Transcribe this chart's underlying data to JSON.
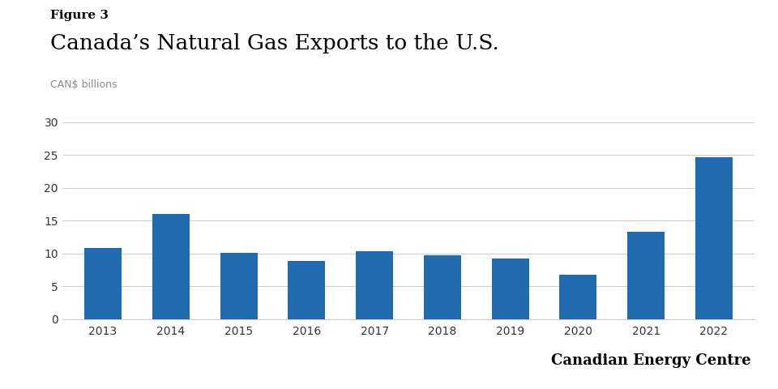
{
  "figure_label": "Figure 3",
  "title": "Canada’s Natural Gas Exports to the U.S.",
  "ylabel": "CAN$ billions",
  "categories": [
    "2013",
    "2014",
    "2015",
    "2016",
    "2017",
    "2018",
    "2019",
    "2020",
    "2021",
    "2022"
  ],
  "values": [
    10.8,
    16.0,
    10.1,
    8.8,
    10.3,
    9.7,
    9.2,
    6.8,
    13.3,
    24.7
  ],
  "bar_color": "#1f6bad",
  "background_color": "#ffffff",
  "ylim": [
    0,
    32
  ],
  "yticks": [
    0,
    5,
    10,
    15,
    20,
    25,
    30
  ],
  "grid_color": "#cccccc",
  "watermark": "Canadian Energy Centre",
  "figure_label_fontsize": 11,
  "title_fontsize": 19,
  "ylabel_fontsize": 9,
  "tick_fontsize": 10,
  "watermark_fontsize": 13
}
